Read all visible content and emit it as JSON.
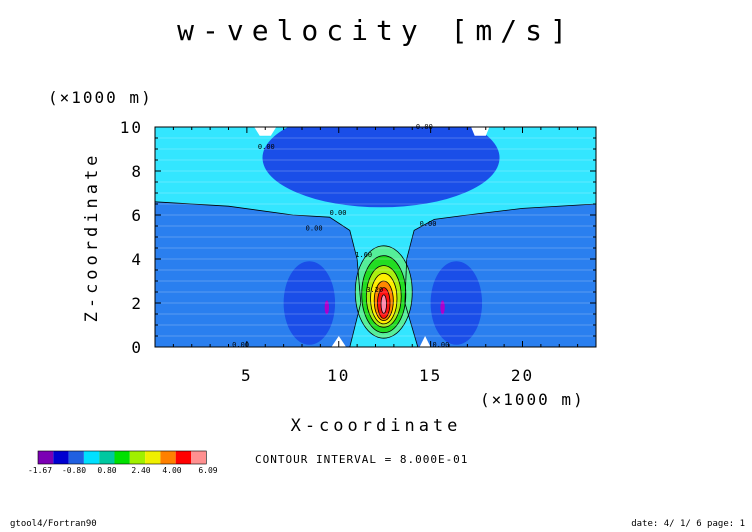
{
  "chart_data": {
    "type": "heatmap",
    "title": "w-velocity [m/s]",
    "xlabel": "X-coordinate",
    "ylabel": "Z-coordinate",
    "x_scale_label": "(×1000 m)",
    "y_scale_label": "(×1000 m)",
    "xlim": [
      0,
      24
    ],
    "ylim": [
      0,
      10
    ],
    "x_ticks": [
      5,
      10,
      15,
      20
    ],
    "y_ticks": [
      0,
      2,
      4,
      6,
      8,
      10
    ],
    "x_tick_labels": [
      "5",
      "10",
      "15",
      "20"
    ],
    "y_tick_labels": [
      "0",
      "2",
      "4",
      "6",
      "8",
      "10"
    ],
    "grid": true,
    "contour_interval_text": "CONTOUR INTERVAL = 8.000E-01",
    "contour_labels": [
      {
        "text": "0.00",
        "x": 14.2,
        "y": 9.9
      },
      {
        "text": "0.00",
        "x": 5.6,
        "y": 9.0
      },
      {
        "text": "0.00",
        "x": 9.5,
        "y": 6.0
      },
      {
        "text": "0.00",
        "x": 8.2,
        "y": 5.3
      },
      {
        "text": "0.00",
        "x": 14.4,
        "y": 5.5
      },
      {
        "text": "1.60",
        "x": 10.9,
        "y": 4.1
      },
      {
        "text": "3.20",
        "x": 11.5,
        "y": 2.5
      },
      {
        "text": "0.00",
        "x": 4.2,
        "y": 0.0
      },
      {
        "text": "0.00",
        "x": 15.1,
        "y": 0.0
      }
    ],
    "colorbar": {
      "colors": [
        "#7b00b4",
        "#0000d0",
        "#2060e0",
        "#00e0ff",
        "#00c8a0",
        "#00e000",
        "#a0f000",
        "#f0f000",
        "#ff8000",
        "#ff0000",
        "#ff9090"
      ],
      "tick_labels": [
        "-1.67",
        "-0.80",
        "0.80",
        "2.40",
        "4.00",
        "6.09"
      ]
    },
    "palette": {
      "light_cyan": "#33e6ff",
      "mid_blue": "#2a7fef",
      "dark_blue": "#1a4ee8",
      "green_light": "#55ee99",
      "green": "#22dd22",
      "yellow_green": "#aaee11",
      "yellow": "#ffee00",
      "orange": "#ff8800",
      "red": "#ff1111",
      "pink": "#ff88aa",
      "purple": "#aa00cc"
    }
  },
  "footer": {
    "left": "gtool4/Fortran90",
    "right": "date: 4/ 1/ 6 page: 1"
  }
}
